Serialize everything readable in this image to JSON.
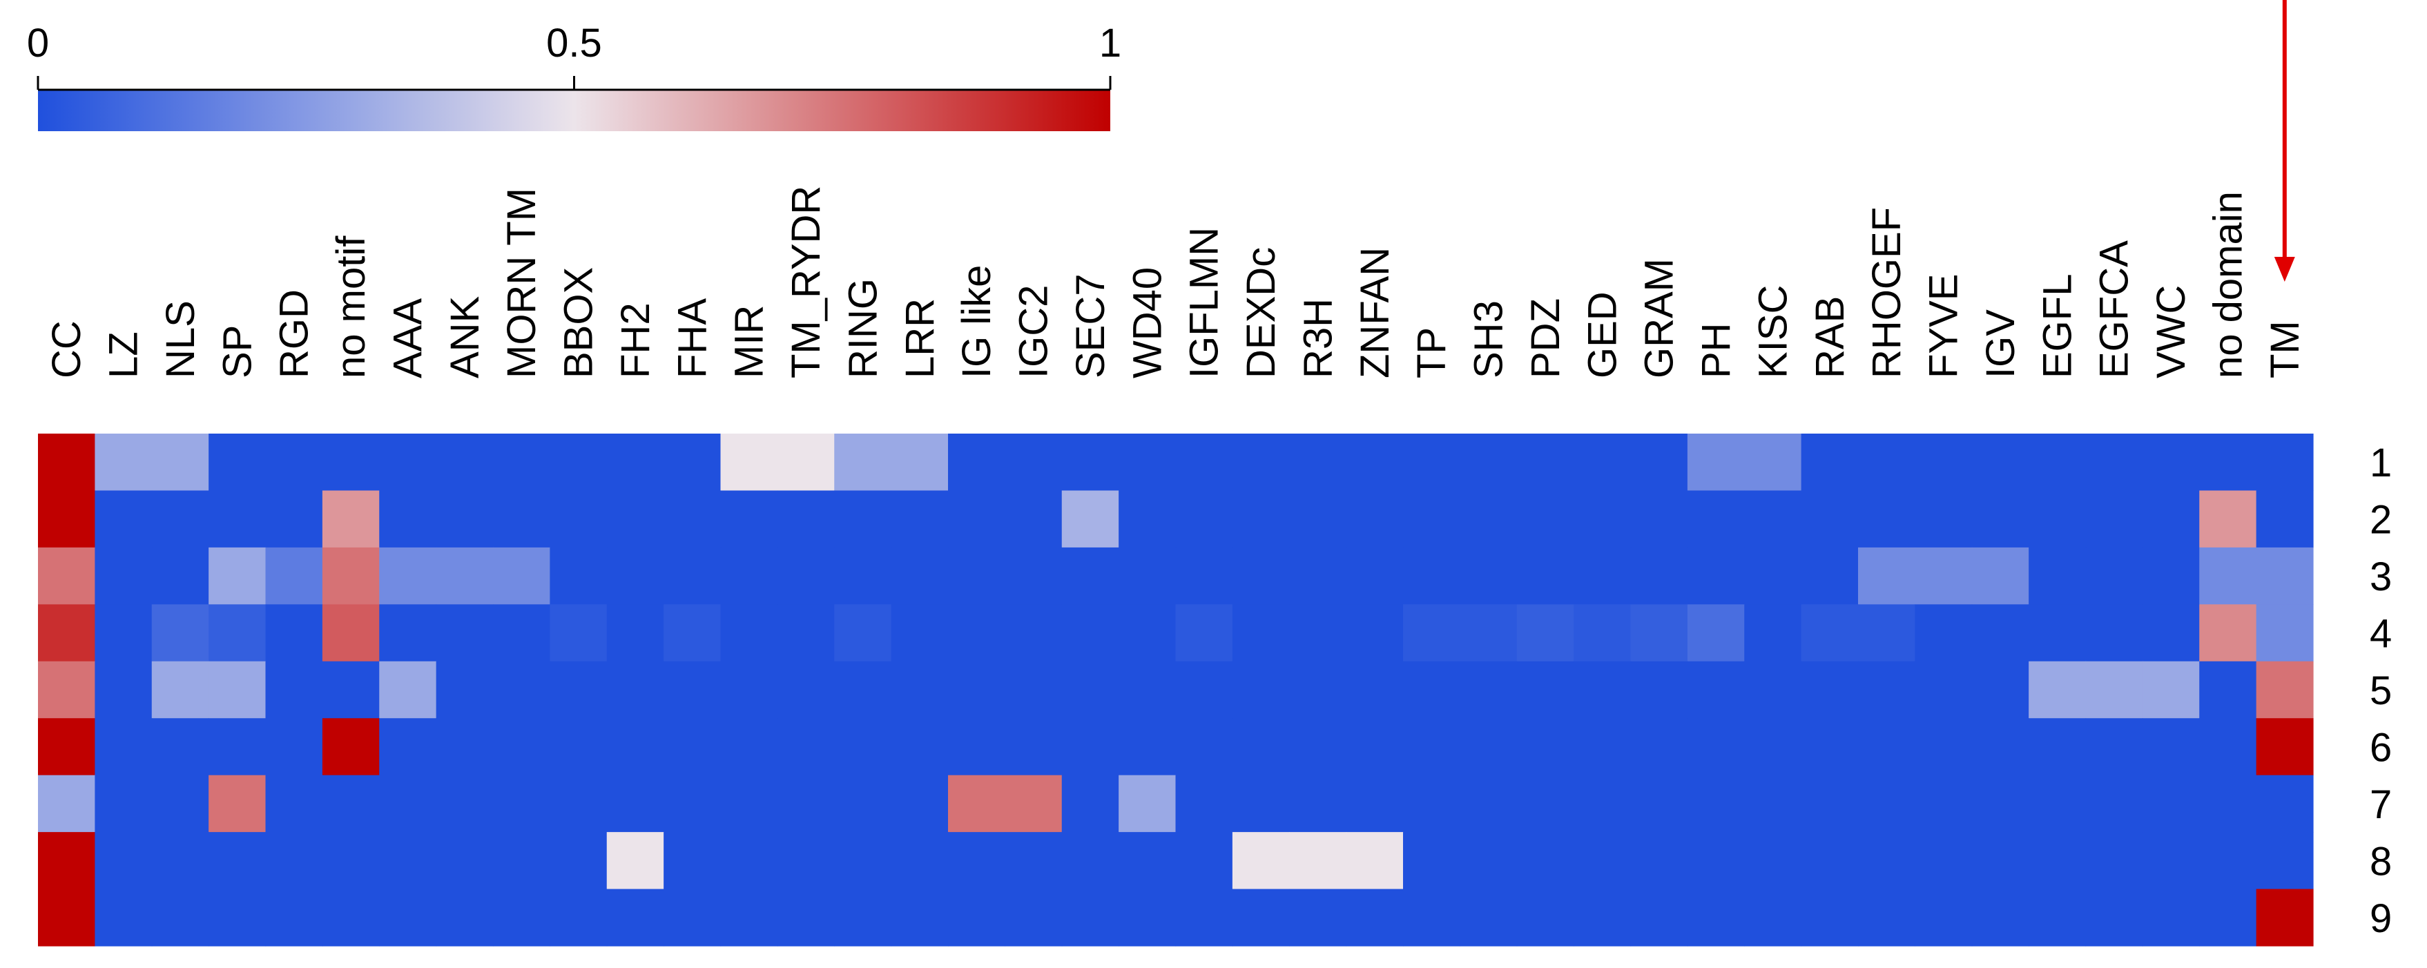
{
  "chart_data": {
    "type": "heatmap",
    "title": "",
    "xlabel": "",
    "ylabel": "",
    "columns": [
      "CC",
      "LZ",
      "NLS",
      "SP",
      "RGD",
      "no motif",
      "AAA",
      "ANK",
      "MORN TM",
      "BBOX",
      "FH2",
      "FHA",
      "MIR",
      "TM_RYDR",
      "RING",
      "LRR",
      "IG like",
      "IGC2",
      "SEC7",
      "WD40",
      "IGFLMN",
      "DEXDc",
      "R3H",
      "ZNFAN",
      "TP",
      "SH3",
      "PDZ",
      "GED",
      "GRAM",
      "PH",
      "KISC",
      "RAB",
      "RHOGEF",
      "FYVE",
      "IGV",
      "EGFL",
      "EGFCA",
      "VWC",
      "no domain",
      "TM"
    ],
    "rows": [
      "1",
      "2",
      "3",
      "4",
      "5",
      "6",
      "7",
      "8",
      "9"
    ],
    "values": [
      [
        1.0,
        0.3,
        0.3,
        0.0,
        0.0,
        0.0,
        0.0,
        0.0,
        0.0,
        0.0,
        0.0,
        0.0,
        0.5,
        0.5,
        0.3,
        0.3,
        0.0,
        0.0,
        0.0,
        0.0,
        0.0,
        0.0,
        0.0,
        0.0,
        0.0,
        0.0,
        0.0,
        0.0,
        0.0,
        0.2,
        0.2,
        0.0,
        0.0,
        0.0,
        0.0,
        0.0,
        0.0,
        0.0,
        0.0,
        0.0
      ],
      [
        1.0,
        0.0,
        0.0,
        0.0,
        0.0,
        0.67,
        0.0,
        0.0,
        0.0,
        0.0,
        0.0,
        0.0,
        0.0,
        0.0,
        0.0,
        0.0,
        0.0,
        0.0,
        0.33,
        0.0,
        0.0,
        0.0,
        0.0,
        0.0,
        0.0,
        0.0,
        0.0,
        0.0,
        0.0,
        0.0,
        0.0,
        0.0,
        0.0,
        0.0,
        0.0,
        0.0,
        0.0,
        0.0,
        0.67,
        0.0
      ],
      [
        0.75,
        0.0,
        0.0,
        0.3,
        0.15,
        0.75,
        0.2,
        0.2,
        0.2,
        0.0,
        0.0,
        0.0,
        0.0,
        0.0,
        0.0,
        0.0,
        0.0,
        0.0,
        0.0,
        0.0,
        0.0,
        0.0,
        0.0,
        0.0,
        0.0,
        0.0,
        0.0,
        0.0,
        0.0,
        0.0,
        0.0,
        0.0,
        0.2,
        0.2,
        0.2,
        0.0,
        0.0,
        0.0,
        0.2,
        0.2
      ],
      [
        0.9,
        0.0,
        0.08,
        0.05,
        0.0,
        0.8,
        0.0,
        0.0,
        0.0,
        0.03,
        0.0,
        0.03,
        0.0,
        0.0,
        0.03,
        0.0,
        0.0,
        0.0,
        0.0,
        0.0,
        0.03,
        0.0,
        0.0,
        0.0,
        0.03,
        0.03,
        0.05,
        0.03,
        0.05,
        0.1,
        0.0,
        0.03,
        0.03,
        0.0,
        0.0,
        0.0,
        0.0,
        0.0,
        0.7,
        0.2
      ],
      [
        0.75,
        0.0,
        0.3,
        0.3,
        0.0,
        0.0,
        0.3,
        0.0,
        0.0,
        0.0,
        0.0,
        0.0,
        0.0,
        0.0,
        0.0,
        0.0,
        0.0,
        0.0,
        0.0,
        0.0,
        0.0,
        0.0,
        0.0,
        0.0,
        0.0,
        0.0,
        0.0,
        0.0,
        0.0,
        0.0,
        0.0,
        0.0,
        0.0,
        0.0,
        0.0,
        0.3,
        0.3,
        0.3,
        0.0,
        0.75
      ],
      [
        1.0,
        0.0,
        0.0,
        0.0,
        0.0,
        1.0,
        0.0,
        0.0,
        0.0,
        0.0,
        0.0,
        0.0,
        0.0,
        0.0,
        0.0,
        0.0,
        0.0,
        0.0,
        0.0,
        0.0,
        0.0,
        0.0,
        0.0,
        0.0,
        0.0,
        0.0,
        0.0,
        0.0,
        0.0,
        0.0,
        0.0,
        0.0,
        0.0,
        0.0,
        0.0,
        0.0,
        0.0,
        0.0,
        0.0,
        1.0
      ],
      [
        0.3,
        0.0,
        0.0,
        0.75,
        0.0,
        0.0,
        0.0,
        0.0,
        0.0,
        0.0,
        0.0,
        0.0,
        0.0,
        0.0,
        0.0,
        0.0,
        0.75,
        0.75,
        0.0,
        0.3,
        0.0,
        0.0,
        0.0,
        0.0,
        0.0,
        0.0,
        0.0,
        0.0,
        0.0,
        0.0,
        0.0,
        0.0,
        0.0,
        0.0,
        0.0,
        0.0,
        0.0,
        0.0,
        0.0,
        0.0
      ],
      [
        1.0,
        0.0,
        0.0,
        0.0,
        0.0,
        0.0,
        0.0,
        0.0,
        0.0,
        0.0,
        0.5,
        0.0,
        0.0,
        0.0,
        0.0,
        0.0,
        0.0,
        0.0,
        0.0,
        0.0,
        0.0,
        0.5,
        0.5,
        0.5,
        0.0,
        0.0,
        0.0,
        0.0,
        0.0,
        0.0,
        0.0,
        0.0,
        0.0,
        0.0,
        0.0,
        0.0,
        0.0,
        0.0,
        0.0,
        0.0
      ],
      [
        1.0,
        0.0,
        0.0,
        0.0,
        0.0,
        0.0,
        0.0,
        0.0,
        0.0,
        0.0,
        0.0,
        0.0,
        0.0,
        0.0,
        0.0,
        0.0,
        0.0,
        0.0,
        0.0,
        0.0,
        0.0,
        0.0,
        0.0,
        0.0,
        0.0,
        0.0,
        0.0,
        0.0,
        0.0,
        0.0,
        0.0,
        0.0,
        0.0,
        0.0,
        0.0,
        0.0,
        0.0,
        0.0,
        0.0,
        1.0
      ]
    ],
    "colorbar": {
      "range": [
        0,
        1
      ],
      "ticks": [
        0,
        0.5,
        1
      ],
      "tick_labels": [
        "0",
        "0.5",
        "1"
      ],
      "colors": [
        "#2050dd",
        "#ece4ea",
        "#c00000"
      ]
    },
    "highlight_arrow": {
      "target_column": "TM",
      "color": "#e00000"
    }
  }
}
